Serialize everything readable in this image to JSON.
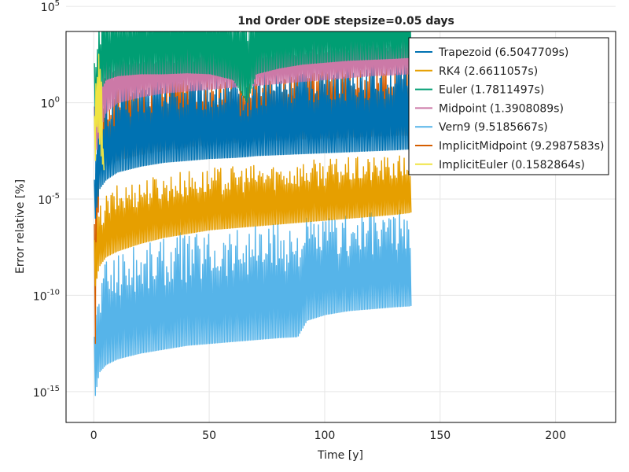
{
  "chart_data": {
    "type": "line",
    "title": "1nd Order ODE stepsize=0.05 days",
    "xlabel": "Time [y]",
    "ylabel": "Error relative [%]",
    "xlim": [
      -12,
      226
    ],
    "ylim_log10": [
      -16.6,
      3.7
    ],
    "yscale": "log10",
    "grid": true,
    "legend_position": "top-right",
    "x_ticks": [
      0,
      50,
      100,
      150,
      200
    ],
    "x_tick_labels": [
      "0",
      "50",
      "100",
      "150",
      "200"
    ],
    "y_ticks": [
      -15,
      -10,
      -5,
      0,
      5
    ],
    "y_tick_labels": [
      {
        "base": "10",
        "exp": "-15"
      },
      {
        "base": "10",
        "exp": "-10"
      },
      {
        "base": "10",
        "exp": "-5"
      },
      {
        "base": "10",
        "exp": "0"
      },
      {
        "base": "10",
        "exp": "5"
      }
    ],
    "series": [
      {
        "name": "Trapezoid (6.5047709s)",
        "color": "#0072B2",
        "x": [
          0.3,
          2,
          5,
          10,
          20,
          30,
          40,
          50,
          60,
          66,
          70,
          80,
          90,
          100,
          110,
          120,
          130,
          137
        ],
        "log10_upper": [
          -2.5,
          -1.0,
          0.4,
          0.9,
          1.3,
          1.4,
          1.45,
          1.5,
          1.3,
          0.8,
          1.5,
          1.8,
          2.0,
          2.1,
          2.2,
          2.25,
          2.3,
          2.35
        ],
        "log10_lower": [
          -6.0,
          -4.5,
          -4.0,
          -3.6,
          -3.3,
          -3.1,
          -3.0,
          -2.9,
          -2.85,
          -2.8,
          -2.75,
          -2.7,
          -2.65,
          -2.6,
          -2.55,
          -2.5,
          -2.45,
          -2.4
        ]
      },
      {
        "name": "RK4 (2.6611057s)",
        "color": "#E69F00",
        "x": [
          0.3,
          2,
          5,
          10,
          20,
          30,
          40,
          50,
          60,
          70,
          80,
          90,
          100,
          110,
          120,
          130,
          137
        ],
        "log10_upper": [
          -7.0,
          -5.5,
          -4.8,
          -4.3,
          -3.9,
          -3.7,
          -3.5,
          -3.4,
          -3.3,
          -3.2,
          -3.1,
          -3.0,
          -2.9,
          -2.85,
          -2.8,
          -2.75,
          -2.7
        ],
        "log10_lower": [
          -9.5,
          -8.5,
          -8.0,
          -7.7,
          -7.3,
          -7.0,
          -6.8,
          -6.6,
          -6.5,
          -6.4,
          -6.3,
          -6.2,
          -6.1,
          -6.0,
          -5.9,
          -5.8,
          -5.7
        ]
      },
      {
        "name": "Euler (1.7811497s)",
        "color": "#009E73",
        "x": [
          0.3,
          2,
          5,
          10,
          20,
          30,
          40,
          50,
          60,
          66,
          70,
          80,
          90,
          100,
          110,
          120,
          130,
          137
        ],
        "log10_upper": [
          2.5,
          4.8,
          5.0,
          5.2,
          5.7,
          5.8,
          5.8,
          5.8,
          5.6,
          5.4,
          5.8,
          5.9,
          6.0,
          6.0,
          6.1,
          6.0,
          5.9,
          5.8
        ],
        "log10_lower": [
          -1.0,
          0.5,
          1.2,
          1.4,
          1.5,
          1.5,
          1.55,
          1.5,
          1.2,
          0.0,
          1.5,
          1.8,
          2.0,
          2.1,
          2.2,
          2.25,
          2.3,
          2.35
        ]
      },
      {
        "name": "Midpoint (1.3908089s)",
        "color": "#CC79A7",
        "x": [
          0.3,
          2,
          5,
          10,
          20,
          30,
          40,
          50,
          60,
          70,
          80,
          90,
          100,
          110,
          120,
          130,
          137
        ],
        "log10_upper": [
          0.5,
          2.0,
          2.6,
          2.9,
          3.1,
          3.2,
          3.3,
          3.3,
          3.2,
          3.3,
          3.4,
          3.5,
          3.5,
          3.6,
          3.6,
          3.6,
          3.6
        ],
        "log10_lower": [
          -3.0,
          -1.5,
          -0.5,
          0.0,
          0.3,
          0.5,
          0.6,
          0.7,
          0.8,
          0.9,
          1.0,
          1.1,
          1.2,
          1.3,
          1.4,
          1.45,
          1.5
        ]
      },
      {
        "name": "Vern9 (9.5185667s)",
        "color": "#56B4E9",
        "x": [
          0.3,
          2,
          5,
          10,
          20,
          30,
          40,
          50,
          60,
          70,
          80,
          88,
          92,
          100,
          110,
          120,
          130,
          137
        ],
        "log10_upper": [
          -11.0,
          -9.5,
          -8.0,
          -7.6,
          -7.2,
          -6.9,
          -6.7,
          -6.5,
          -6.4,
          -6.3,
          -6.2,
          -6.15,
          -6.0,
          -5.9,
          -5.8,
          -5.7,
          -5.6,
          -5.5
        ],
        "log10_lower": [
          -15.2,
          -14.0,
          -13.6,
          -13.3,
          -13.0,
          -12.8,
          -12.6,
          -12.5,
          -12.4,
          -12.3,
          -12.2,
          -12.15,
          -11.3,
          -11.0,
          -10.8,
          -10.7,
          -10.6,
          -10.55
        ]
      },
      {
        "name": "ImplicitMidpoint (9.2987583s)",
        "color": "#D55E00",
        "x": [
          0.3,
          2,
          5,
          10,
          20,
          30,
          40,
          50,
          60,
          70,
          80,
          90,
          100,
          110,
          120,
          130,
          137,
          150,
          170,
          190,
          215
        ],
        "log10_upper": [
          -3.0,
          -0.5,
          0.8,
          1.2,
          1.4,
          1.5,
          1.5,
          1.5,
          1.5,
          1.6,
          1.7,
          1.8,
          1.9,
          2.0,
          2.0,
          2.05,
          2.1,
          -1.2,
          -1.2,
          -1.2,
          -1.2
        ],
        "log10_lower": [
          -12.5,
          -3.6,
          -3.3,
          -3.0,
          -2.7,
          -2.5,
          -2.3,
          -2.2,
          -2.1,
          -2.0,
          -1.95,
          -1.9,
          -1.85,
          -1.8,
          -1.75,
          -1.7,
          -1.7,
          -1.6,
          -1.6,
          -1.55,
          -1.55
        ]
      },
      {
        "name": "ImplicitEuler (0.1582864s)",
        "color": "#F0E442",
        "x": [
          0.3,
          1,
          2,
          3,
          4
        ],
        "log10_upper": [
          1.0,
          2.2,
          4.5,
          3.8,
          -2.0
        ],
        "log10_lower": [
          -3.0,
          -1.0,
          -2.0,
          -3.0,
          -3.5
        ]
      }
    ],
    "draw_order": [
      4,
      5,
      1,
      0,
      3,
      2,
      6
    ]
  }
}
